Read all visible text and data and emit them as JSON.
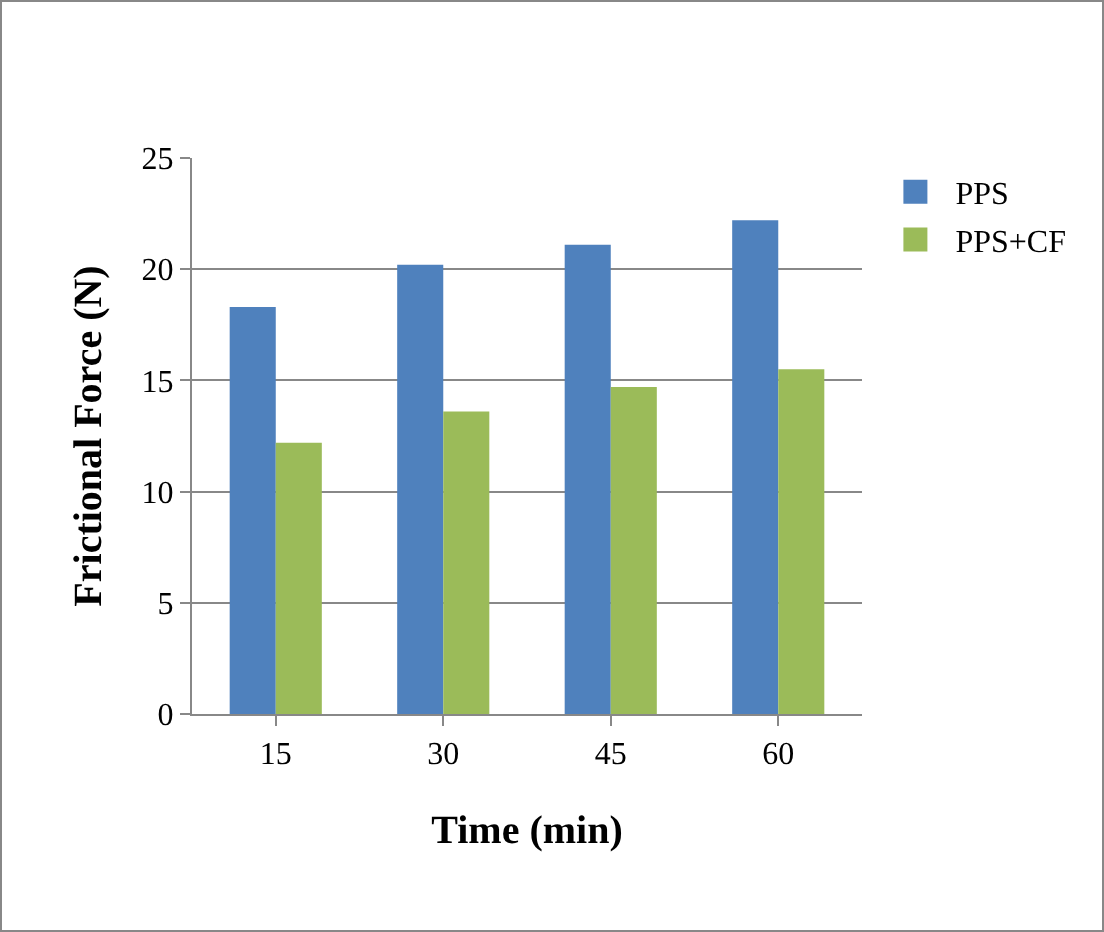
{
  "chart_data": {
    "type": "bar",
    "xlabel": "Time (min)",
    "ylabel": "Frictional Force (N)",
    "categories": [
      "15",
      "30",
      "45",
      "60"
    ],
    "series": [
      {
        "name": "PPS",
        "color": "#4f81bd",
        "values": [
          18.3,
          20.2,
          21.1,
          22.2
        ]
      },
      {
        "name": "PPS+CF",
        "color": "#9bbb59",
        "values": [
          12.2,
          13.6,
          14.7,
          15.5
        ]
      }
    ],
    "ylim": [
      0,
      25
    ],
    "yticks": [
      0,
      5,
      10,
      15,
      20,
      25
    ],
    "grid": "y",
    "legend": "top right"
  }
}
